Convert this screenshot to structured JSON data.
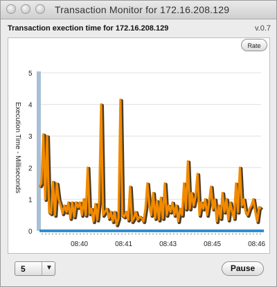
{
  "window": {
    "title": "Transaction Monitor for 172.16.208.129"
  },
  "header": {
    "title": "Transaction exection time for 172.16.208.129",
    "version": "v.0.7"
  },
  "toolbar": {
    "rate_label": "Rate"
  },
  "footer": {
    "interval_value": "5",
    "pause_label": "Pause"
  },
  "colors": {
    "line": "#f28a00",
    "baseline": "#2f8fd0",
    "yaxis_bar": "#a9bfd6",
    "grid": "#e0e0e0"
  },
  "chart_data": {
    "type": "line",
    "ylabel": "Execution Time - Milliseconds",
    "xlabel": "",
    "ylim": [
      0,
      5
    ],
    "y_ticks": [
      "0",
      "1",
      "2",
      "3",
      "4",
      "5"
    ],
    "x_tick_labels": [
      "08:40",
      "08:41",
      "08:43",
      "08:45",
      "08:46"
    ],
    "x_tick_positions": [
      0.18,
      0.38,
      0.58,
      0.78,
      0.98
    ],
    "series": [
      {
        "values": [
          1.4,
          1.5,
          3.05,
          1.0,
          3.0,
          0.6,
          0.55,
          1.55,
          0.5,
          1.5,
          1.0,
          0.8,
          0.55,
          0.8,
          0.6,
          0.9,
          0.4,
          0.9,
          0.45,
          0.9,
          0.75,
          0.9,
          0.5,
          1.0,
          0.5,
          2.0,
          0.55,
          0.7,
          0.3,
          0.85,
          0.35,
          0.95,
          4.0,
          0.5,
          0.6,
          0.7,
          0.4,
          0.6,
          0.3,
          0.6,
          0.2,
          0.4,
          4.15,
          0.5,
          0.45,
          0.6,
          0.35,
          1.4,
          0.3,
          0.4,
          0.6,
          0.35,
          0.45,
          0.4,
          0.3,
          0.7,
          1.5,
          0.8,
          0.5,
          1.2,
          0.4,
          0.95,
          0.35,
          1.05,
          0.4,
          1.5,
          0.5,
          0.8,
          0.6,
          0.9,
          0.5,
          0.8,
          0.3,
          0.7,
          0.5,
          1.5,
          0.7,
          2.2,
          0.7,
          1.2,
          0.8,
          1.1,
          1.8,
          0.5,
          0.9,
          0.7,
          1.0,
          0.5,
          0.9,
          1.4,
          0.7,
          1.0,
          0.3,
          0.8,
          0.4,
          1.2,
          0.6,
          1.0,
          0.35,
          0.9,
          0.6,
          0.4,
          1.5,
          0.6,
          2.0,
          0.8,
          1.0,
          0.6,
          0.5,
          0.7,
          0.8,
          1.0,
          0.6,
          0.3,
          0.75,
          0.7
        ]
      }
    ]
  }
}
